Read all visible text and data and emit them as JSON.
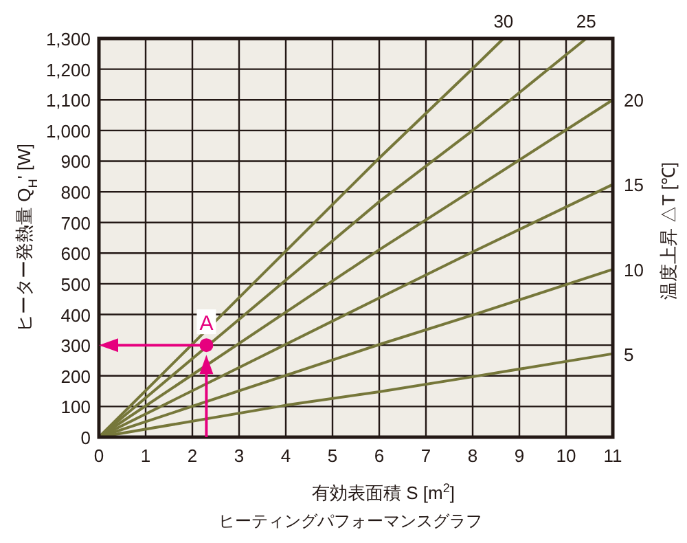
{
  "chart_data": {
    "type": "line",
    "xlabel": "有効表面積 S [m$^{2}$]",
    "ylabel": "ヒーター発熱量 Q$_{H}$' [W]",
    "annotations": [
      "ヒーティングパフォーマンスグラフ",
      "温度上昇 △T [℃]",
      {
        "text": "A",
        "x": 2.3,
        "y": 300
      }
    ],
    "xlim": [
      0,
      11
    ],
    "xticks": [
      0,
      1,
      2,
      3,
      4,
      5,
      6,
      7,
      8,
      9,
      10,
      11
    ],
    "ylim": [
      0,
      1300
    ],
    "yticks": [
      0,
      100,
      200,
      300,
      400,
      500,
      600,
      700,
      800,
      900,
      {
        "value": 1000,
        "label": "1,000"
      },
      {
        "value": 1100,
        "label": "1,100"
      },
      {
        "value": 1200,
        "label": "1,200"
      },
      {
        "value": 1300,
        "label": "1,300"
      }
    ],
    "grid": true,
    "marker": "none",
    "line_style": "solid",
    "series": [
      {
        "name": "5",
        "color": "#76773a",
        "x": [
          0,
          4,
          6,
          8,
          11
        ],
        "values": [
          0,
          104,
          148,
          197,
          272
        ]
      },
      {
        "name": "10",
        "color": "#76773a",
        "x": [
          0,
          6,
          8,
          11
        ],
        "values": [
          0,
          302,
          398,
          547
        ]
      },
      {
        "name": "15",
        "color": "#76773a",
        "x": [
          0,
          6,
          8,
          11
        ],
        "values": [
          0,
          454,
          604,
          824
        ]
      },
      {
        "name": "20",
        "color": "#76773a",
        "x": [
          0,
          6,
          8,
          11
        ],
        "values": [
          0,
          611,
          806,
          1100
        ]
      },
      {
        "name": "25",
        "color": "#76773a",
        "x": [
          0,
          6,
          8,
          10.43
        ],
        "values": [
          0,
          768,
          1000,
          1300
        ]
      },
      {
        "name": "30",
        "color": "#76773a",
        "x": [
          0,
          6,
          8,
          8.66
        ],
        "values": [
          0,
          910,
          1202,
          1300
        ]
      },
      {
        "type": "scatter",
        "marker": "circle",
        "color": "#e6007e",
        "x": [
          2.3
        ],
        "values": [
          300
        ]
      }
    ]
  }
}
